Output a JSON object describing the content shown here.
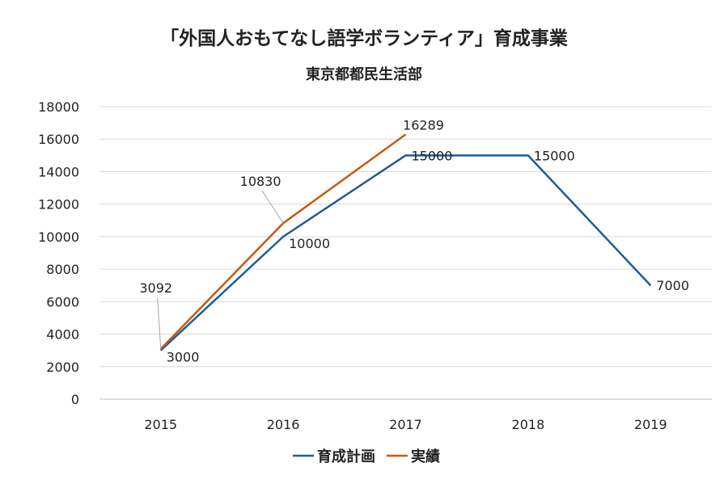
{
  "chart_data": {
    "type": "line",
    "title": "「外国人おもてなし語学ボランティア」育成事業",
    "subtitle": "東京都都民生活部",
    "categories": [
      "2015",
      "2016",
      "2017",
      "2018",
      "2019"
    ],
    "series": [
      {
        "name": "育成計画",
        "color": "#1f5c99",
        "values": [
          3000,
          10000,
          15000,
          15000,
          7000
        ]
      },
      {
        "name": "実績",
        "color": "#c55a11",
        "values": [
          3092,
          10830,
          16289,
          null,
          null
        ]
      }
    ],
    "ylim": [
      0,
      18000
    ],
    "ytick_step": 2000,
    "y_ticks": [
      "0",
      "2000",
      "4000",
      "6000",
      "8000",
      "10000",
      "12000",
      "14000",
      "16000",
      "18000"
    ],
    "gridlines": true,
    "legend_position": "bottom",
    "data_labels": {
      "plan": [
        "3000",
        "10000",
        "15000",
        "15000",
        "7000"
      ],
      "actual": [
        "3092",
        "10830",
        "16289"
      ]
    }
  }
}
